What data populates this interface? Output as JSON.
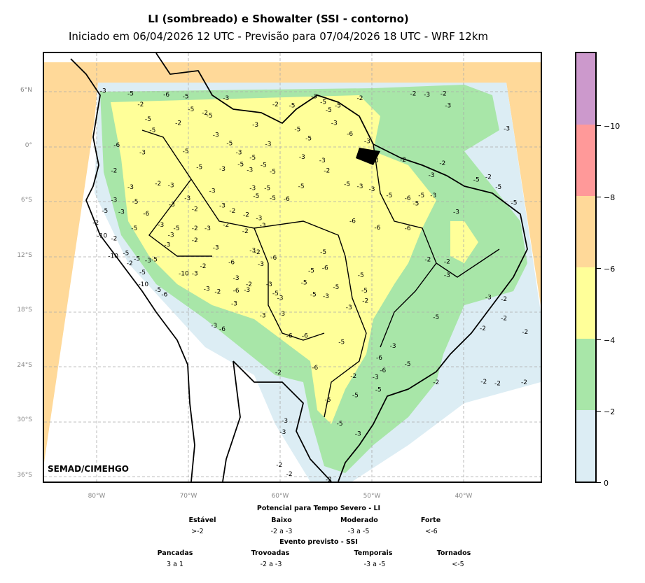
{
  "title": "LI (sombreado) e Showalter (SSI - contorno)",
  "subtitle": "Iniciado em 06/04/2026 12 UTC - Previsão para 07/04/2026 18 UTC - WRF 12km",
  "credit": "SEMAD/CIMEHGO",
  "lat_labels": [
    "6°N",
    "0°",
    "6°S",
    "12°S",
    "18°S",
    "24°S",
    "30°S",
    "36°S"
  ],
  "lon_labels": [
    "80°W",
    "70°W",
    "60°W",
    "50°W",
    "40°W"
  ],
  "colorbar": {
    "colors": [
      "#dcedf4",
      "#a8e6a8",
      "#ffff99",
      "#ffd999",
      "#ff9999",
      "#cc99cc"
    ],
    "tick_labels": [
      "0",
      "−2",
      "−4",
      "−6",
      "−8",
      "−10"
    ]
  },
  "legend": {
    "li_title": "Potencial para Tempo Severo - LI",
    "li_categories": [
      {
        "name": "Estável",
        "range": ">-2"
      },
      {
        "name": "Baixo",
        "range": "-2 a -3"
      },
      {
        "name": "Moderado",
        "range": "-3 a -5"
      },
      {
        "name": "Forte",
        "range": "<-6"
      }
    ],
    "ssi_title": "Evento previsto - SSI",
    "ssi_categories": [
      {
        "name": "Pancadas",
        "range": "3 a 1"
      },
      {
        "name": "Trovoadas",
        "range": "-2 a -3"
      },
      {
        "name": "Temporais",
        "range": "-3 a -5"
      },
      {
        "name": "Tornados",
        "range": "<-5"
      }
    ]
  },
  "contour_labels": [
    {
      "text": "-3",
      "lon": -79.3,
      "lat": 6.1
    },
    {
      "text": "-5",
      "lon": -76.3,
      "lat": 5.8
    },
    {
      "text": "-6",
      "lon": -72.4,
      "lat": 5.7
    },
    {
      "text": "-5",
      "lon": -70.3,
      "lat": 5.5
    },
    {
      "text": "-3",
      "lon": -65.9,
      "lat": 5.3
    },
    {
      "text": "-3",
      "lon": -56.3,
      "lat": 5.5
    },
    {
      "text": "-5",
      "lon": -55.3,
      "lat": 4.9
    },
    {
      "text": "-2",
      "lon": -51.3,
      "lat": 5.3
    },
    {
      "text": "-2",
      "lon": -45.5,
      "lat": 5.8
    },
    {
      "text": "-3",
      "lon": -44.0,
      "lat": 5.7
    },
    {
      "text": "-2",
      "lon": -42.2,
      "lat": 5.8
    },
    {
      "text": "-3",
      "lon": -41.7,
      "lat": 4.5
    },
    {
      "text": "-3",
      "lon": -35.3,
      "lat": 2.0
    },
    {
      "text": "-2",
      "lon": -75.2,
      "lat": 4.6
    },
    {
      "text": "-5",
      "lon": -74.4,
      "lat": 3.0
    },
    {
      "text": "-5",
      "lon": -69.7,
      "lat": 4.1
    },
    {
      "text": "-2",
      "lon": -68.2,
      "lat": 3.7
    },
    {
      "text": "-5",
      "lon": -67.7,
      "lat": 3.4
    },
    {
      "text": "-2",
      "lon": -60.5,
      "lat": 4.6
    },
    {
      "text": "-5",
      "lon": -58.7,
      "lat": 4.5
    },
    {
      "text": "-5",
      "lon": -54.7,
      "lat": 4.0
    },
    {
      "text": "-5",
      "lon": -53.7,
      "lat": 4.5
    },
    {
      "text": "-3",
      "lon": -54.1,
      "lat": 2.6
    },
    {
      "text": "-3",
      "lon": -62.7,
      "lat": 2.4
    },
    {
      "text": "-5",
      "lon": -58.1,
      "lat": 1.9
    },
    {
      "text": "-6",
      "lon": -52.4,
      "lat": 1.4
    },
    {
      "text": "-5",
      "lon": -73.9,
      "lat": 1.8
    },
    {
      "text": "-2",
      "lon": -71.1,
      "lat": 2.6
    },
    {
      "text": "-3",
      "lon": -67.0,
      "lat": 1.3
    },
    {
      "text": "-5",
      "lon": -65.5,
      "lat": 0.4
    },
    {
      "text": "-3",
      "lon": -61.3,
      "lat": 0.3
    },
    {
      "text": "-5",
      "lon": -56.9,
      "lat": 0.9
    },
    {
      "text": "-3",
      "lon": -50.5,
      "lat": 0.6
    },
    {
      "text": "-6",
      "lon": -77.8,
      "lat": 0.2
    },
    {
      "text": "-3",
      "lon": -75.0,
      "lat": -0.6
    },
    {
      "text": "-5",
      "lon": -70.3,
      "lat": -0.5
    },
    {
      "text": "-3",
      "lon": -64.5,
      "lat": -0.6
    },
    {
      "text": "-5",
      "lon": -63.0,
      "lat": -1.2
    },
    {
      "text": "-3",
      "lon": -57.6,
      "lat": -1.1
    },
    {
      "text": "-3",
      "lon": -55.4,
      "lat": -1.5
    },
    {
      "text": "-3",
      "lon": -49.6,
      "lat": -1.5
    },
    {
      "text": "-2",
      "lon": -46.6,
      "lat": -1.4
    },
    {
      "text": "-2",
      "lon": -42.3,
      "lat": -1.8
    },
    {
      "text": "-2",
      "lon": -78.1,
      "lat": -2.6
    },
    {
      "text": "-5",
      "lon": -68.8,
      "lat": -2.2
    },
    {
      "text": "-3",
      "lon": -66.3,
      "lat": -2.4
    },
    {
      "text": "-5",
      "lon": -64.3,
      "lat": -1.9
    },
    {
      "text": "-3",
      "lon": -63.3,
      "lat": -2.5
    },
    {
      "text": "-5",
      "lon": -61.8,
      "lat": -2.0
    },
    {
      "text": "-5",
      "lon": -60.8,
      "lat": -2.7
    },
    {
      "text": "-2",
      "lon": -54.9,
      "lat": -2.6
    },
    {
      "text": "-3",
      "lon": -43.5,
      "lat": -3.1
    },
    {
      "text": "-5",
      "lon": -38.6,
      "lat": -3.6
    },
    {
      "text": "-2",
      "lon": -37.3,
      "lat": -3.3
    },
    {
      "text": "-3",
      "lon": -76.3,
      "lat": -4.4
    },
    {
      "text": "-2",
      "lon": -73.3,
      "lat": -4.0
    },
    {
      "text": "-3",
      "lon": -71.9,
      "lat": -4.2
    },
    {
      "text": "-3",
      "lon": -67.4,
      "lat": -4.8
    },
    {
      "text": "-3",
      "lon": -63.0,
      "lat": -4.5
    },
    {
      "text": "-5",
      "lon": -61.4,
      "lat": -4.5
    },
    {
      "text": "-5",
      "lon": -57.7,
      "lat": -4.3
    },
    {
      "text": "-5",
      "lon": -52.7,
      "lat": -4.1
    },
    {
      "text": "-3",
      "lon": -51.3,
      "lat": -4.3
    },
    {
      "text": "-3",
      "lon": -50.0,
      "lat": -4.6
    },
    {
      "text": "-5",
      "lon": -48.1,
      "lat": -5.3
    },
    {
      "text": "-5",
      "lon": -44.6,
      "lat": -5.3
    },
    {
      "text": "-3",
      "lon": -43.3,
      "lat": -5.3
    },
    {
      "text": "-5",
      "lon": -36.2,
      "lat": -4.4
    },
    {
      "text": "-3",
      "lon": -78.1,
      "lat": -5.8
    },
    {
      "text": "-5",
      "lon": -75.8,
      "lat": -6.0
    },
    {
      "text": "-3",
      "lon": -70.1,
      "lat": -5.6
    },
    {
      "text": "-5",
      "lon": -62.6,
      "lat": -5.4
    },
    {
      "text": "-5",
      "lon": -60.8,
      "lat": -5.6
    },
    {
      "text": "-6",
      "lon": -59.3,
      "lat": -5.7
    },
    {
      "text": "-6",
      "lon": -46.1,
      "lat": -5.6
    },
    {
      "text": "-5",
      "lon": -45.2,
      "lat": -6.2
    },
    {
      "text": "-5",
      "lon": -34.5,
      "lat": -6.1
    },
    {
      "text": "-5",
      "lon": -79.1,
      "lat": -7.0
    },
    {
      "text": "-3",
      "lon": -77.3,
      "lat": -7.1
    },
    {
      "text": "-6",
      "lon": -74.6,
      "lat": -7.3
    },
    {
      "text": "-3",
      "lon": -71.8,
      "lat": -6.3
    },
    {
      "text": "-2",
      "lon": -69.3,
      "lat": -6.8
    },
    {
      "text": "-3",
      "lon": -66.3,
      "lat": -6.4
    },
    {
      "text": "-2",
      "lon": -65.2,
      "lat": -7.0
    },
    {
      "text": "-2",
      "lon": -63.7,
      "lat": -7.4
    },
    {
      "text": "-3",
      "lon": -62.3,
      "lat": -7.8
    },
    {
      "text": "-3",
      "lon": -40.8,
      "lat": -7.1
    },
    {
      "text": "-6",
      "lon": -46.1,
      "lat": -8.9
    },
    {
      "text": "-2",
      "lon": -80.1,
      "lat": -8.3
    },
    {
      "text": "-5",
      "lon": -75.9,
      "lat": -8.9
    },
    {
      "text": "-3",
      "lon": -73.0,
      "lat": -8.5
    },
    {
      "text": "-5",
      "lon": -71.3,
      "lat": -8.9
    },
    {
      "text": "-2",
      "lon": -69.3,
      "lat": -8.9
    },
    {
      "text": "-3",
      "lon": -67.9,
      "lat": -8.9
    },
    {
      "text": "-2",
      "lon": -65.9,
      "lat": -8.5
    },
    {
      "text": "-2",
      "lon": -63.8,
      "lat": -9.2
    },
    {
      "text": "-3",
      "lon": -61.9,
      "lat": -8.6
    },
    {
      "text": "-6",
      "lon": -52.1,
      "lat": -8.1
    },
    {
      "text": "-6",
      "lon": -49.4,
      "lat": -8.8
    },
    {
      "text": "-10",
      "lon": -79.4,
      "lat": -9.7
    },
    {
      "text": "-2",
      "lon": -78.1,
      "lat": -10.0
    },
    {
      "text": "-3",
      "lon": -71.9,
      "lat": -9.6
    },
    {
      "text": "-3",
      "lon": -72.3,
      "lat": -10.7
    },
    {
      "text": "-2",
      "lon": -69.3,
      "lat": -10.2
    },
    {
      "text": "-3",
      "lon": -67.0,
      "lat": -11.0
    },
    {
      "text": "-3",
      "lon": -63.0,
      "lat": -11.3
    },
    {
      "text": "-2",
      "lon": -62.5,
      "lat": -11.5
    },
    {
      "text": "-5",
      "lon": -55.3,
      "lat": -11.5
    },
    {
      "text": "-10",
      "lon": -78.2,
      "lat": -11.9
    },
    {
      "text": "-5",
      "lon": -76.8,
      "lat": -11.6
    },
    {
      "text": "-5",
      "lon": -75.6,
      "lat": -12.2
    },
    {
      "text": "-3",
      "lon": -74.4,
      "lat": -12.4
    },
    {
      "text": "-2",
      "lon": -76.4,
      "lat": -12.7
    },
    {
      "text": "-5",
      "lon": -73.7,
      "lat": -12.3
    },
    {
      "text": "-2",
      "lon": -68.4,
      "lat": -13.0
    },
    {
      "text": "-6",
      "lon": -65.3,
      "lat": -12.6
    },
    {
      "text": "-3",
      "lon": -62.1,
      "lat": -12.8
    },
    {
      "text": "-6",
      "lon": -60.7,
      "lat": -12.1
    },
    {
      "text": "-5",
      "lon": -56.6,
      "lat": -13.5
    },
    {
      "text": "-6",
      "lon": -55.1,
      "lat": -13.2
    },
    {
      "text": "-5",
      "lon": -75.0,
      "lat": -13.7
    },
    {
      "text": "-10",
      "lon": -70.5,
      "lat": -13.8
    },
    {
      "text": "-3",
      "lon": -69.3,
      "lat": -13.8
    },
    {
      "text": "-2",
      "lon": -43.9,
      "lat": -12.3
    },
    {
      "text": "-2",
      "lon": -41.8,
      "lat": -12.5
    },
    {
      "text": "-3",
      "lon": -64.8,
      "lat": -14.3
    },
    {
      "text": "-2",
      "lon": -63.4,
      "lat": -15.0
    },
    {
      "text": "-3",
      "lon": -61.2,
      "lat": -15.0
    },
    {
      "text": "-5",
      "lon": -57.4,
      "lat": -14.8
    },
    {
      "text": "-5",
      "lon": -53.9,
      "lat": -15.3
    },
    {
      "text": "-5",
      "lon": -51.2,
      "lat": -14.0
    },
    {
      "text": "-3",
      "lon": -41.8,
      "lat": -14.0
    },
    {
      "text": "-10",
      "lon": -74.9,
      "lat": -15.0
    },
    {
      "text": "-5",
      "lon": -73.3,
      "lat": -15.6
    },
    {
      "text": "-6",
      "lon": -72.6,
      "lat": -16.1
    },
    {
      "text": "-3",
      "lon": -68.0,
      "lat": -15.5
    },
    {
      "text": "-2",
      "lon": -66.8,
      "lat": -15.8
    },
    {
      "text": "-6",
      "lon": -64.8,
      "lat": -15.7
    },
    {
      "text": "-3",
      "lon": -63.6,
      "lat": -15.6
    },
    {
      "text": "-5",
      "lon": -60.5,
      "lat": -16.0
    },
    {
      "text": "-5",
      "lon": -56.4,
      "lat": -16.1
    },
    {
      "text": "-3",
      "lon": -55.0,
      "lat": -16.3
    },
    {
      "text": "-5",
      "lon": -50.8,
      "lat": -15.7
    },
    {
      "text": "-3",
      "lon": -65.0,
      "lat": -17.1
    },
    {
      "text": "-3",
      "lon": -60.0,
      "lat": -16.5
    },
    {
      "text": "-3",
      "lon": -52.5,
      "lat": -17.5
    },
    {
      "text": "-2",
      "lon": -50.7,
      "lat": -16.8
    },
    {
      "text": "-3",
      "lon": -37.3,
      "lat": -16.4
    },
    {
      "text": "-2",
      "lon": -35.6,
      "lat": -16.6
    },
    {
      "text": "-5",
      "lon": -43.0,
      "lat": -18.6
    },
    {
      "text": "-3",
      "lon": -61.9,
      "lat": -18.4
    },
    {
      "text": "-3",
      "lon": -59.8,
      "lat": -18.2
    },
    {
      "text": "-3",
      "lon": -67.2,
      "lat": -19.5
    },
    {
      "text": "-6",
      "lon": -66.3,
      "lat": -19.9
    },
    {
      "text": "-2",
      "lon": -35.6,
      "lat": -18.7
    },
    {
      "text": "-2",
      "lon": -37.9,
      "lat": -19.8
    },
    {
      "text": "-2",
      "lon": -33.3,
      "lat": -20.2
    },
    {
      "text": "-6",
      "lon": -59.0,
      "lat": -20.6
    },
    {
      "text": "-6",
      "lon": -57.3,
      "lat": -20.6
    },
    {
      "text": "-3",
      "lon": -47.7,
      "lat": -21.7
    },
    {
      "text": "-5",
      "lon": -53.3,
      "lat": -21.3
    },
    {
      "text": "-6",
      "lon": -49.2,
      "lat": -23.0
    },
    {
      "text": "-6",
      "lon": -56.2,
      "lat": -24.1
    },
    {
      "text": "-2",
      "lon": -60.2,
      "lat": -24.6
    },
    {
      "text": "-6",
      "lon": -48.8,
      "lat": -24.4
    },
    {
      "text": "-5",
      "lon": -46.1,
      "lat": -23.7
    },
    {
      "text": "-2",
      "lon": -52.0,
      "lat": -25.0
    },
    {
      "text": "-3",
      "lon": -49.6,
      "lat": -25.1
    },
    {
      "text": "-2",
      "lon": -43.0,
      "lat": -25.7
    },
    {
      "text": "-2",
      "lon": -37.8,
      "lat": -25.6
    },
    {
      "text": "-2",
      "lon": -36.3,
      "lat": -25.8
    },
    {
      "text": "-2",
      "lon": -33.4,
      "lat": -25.7
    },
    {
      "text": "-5",
      "lon": -49.3,
      "lat": -26.5
    },
    {
      "text": "-5",
      "lon": -51.8,
      "lat": -27.1
    },
    {
      "text": "-5",
      "lon": -54.8,
      "lat": -27.6
    },
    {
      "text": "-3",
      "lon": -59.5,
      "lat": -29.9
    },
    {
      "text": "-5",
      "lon": -53.5,
      "lat": -30.2
    },
    {
      "text": "-3",
      "lon": -59.7,
      "lat": -31.1
    },
    {
      "text": "-3",
      "lon": -51.5,
      "lat": -31.3
    },
    {
      "text": "-2",
      "lon": -60.1,
      "lat": -34.7
    },
    {
      "text": "-2",
      "lon": -59.0,
      "lat": -35.7
    },
    {
      "text": "-2",
      "lon": -54.7,
      "lat": -36.3
    }
  ]
}
